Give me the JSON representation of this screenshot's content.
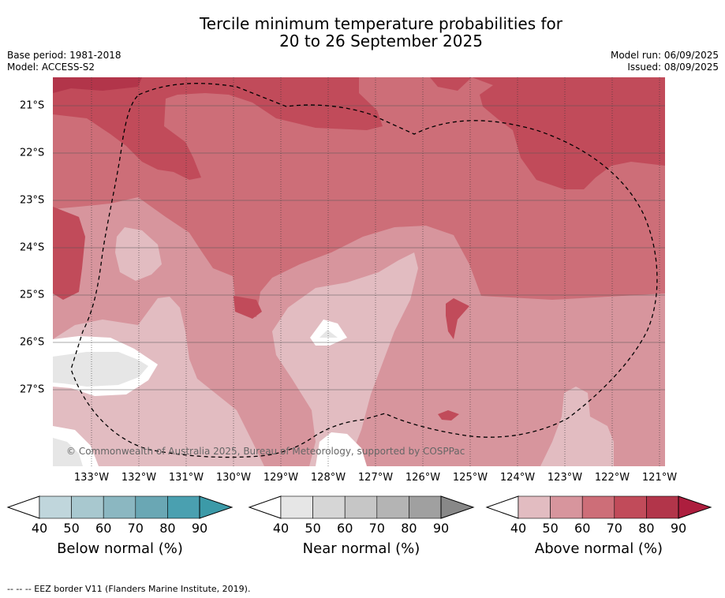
{
  "title_line1": "Tercile minimum temperature probabilities for",
  "title_line2": "20 to 26 September 2025",
  "base_period": "Base period: 1981-2018",
  "model": "Model: ACCESS-S2",
  "model_run": "Model run: 06/09/2025",
  "issued": "Issued: 08/09/2025",
  "copyright": "© Commonwealth of Australia 2025, Bureau of Meteorology, supported by COSPPac",
  "map": {
    "lon_ticks": [
      "133°W",
      "132°W",
      "131°W",
      "130°W",
      "129°W",
      "128°W",
      "127°W",
      "126°W",
      "125°W",
      "124°W",
      "123°W",
      "122°W",
      "121°W"
    ],
    "lat_ticks": [
      "21°S",
      "22°S",
      "23°S",
      "24°S",
      "25°S",
      "26°S",
      "27°S"
    ],
    "dominant_category": "Above normal",
    "eez_border": "dashed"
  },
  "colorbars": [
    {
      "label": "Below normal (%)",
      "ticks": [
        "40",
        "50",
        "60",
        "70",
        "80",
        "90"
      ],
      "colors": [
        "#c0d6dc",
        "#a8c8cf",
        "#8bb7c1",
        "#6aa7b4",
        "#4aa0b0"
      ],
      "extend_color": "#3c9aa8"
    },
    {
      "label": "Near normal (%)",
      "ticks": [
        "40",
        "50",
        "60",
        "70",
        "80",
        "90"
      ],
      "colors": [
        "#e6e6e6",
        "#d6d6d6",
        "#c6c6c6",
        "#b4b4b4",
        "#a0a0a0"
      ],
      "extend_color": "#888888"
    },
    {
      "label": "Above normal (%)",
      "ticks": [
        "40",
        "50",
        "60",
        "70",
        "80",
        "90"
      ],
      "colors": [
        "#e2bcc1",
        "#d7959d",
        "#cd6e78",
        "#c14b5a",
        "#b2354a"
      ],
      "extend_color": "#ad1e3e"
    }
  ],
  "footnote": "-- -- -- EEZ border V11 (Flanders Marine Institute, 2019)."
}
